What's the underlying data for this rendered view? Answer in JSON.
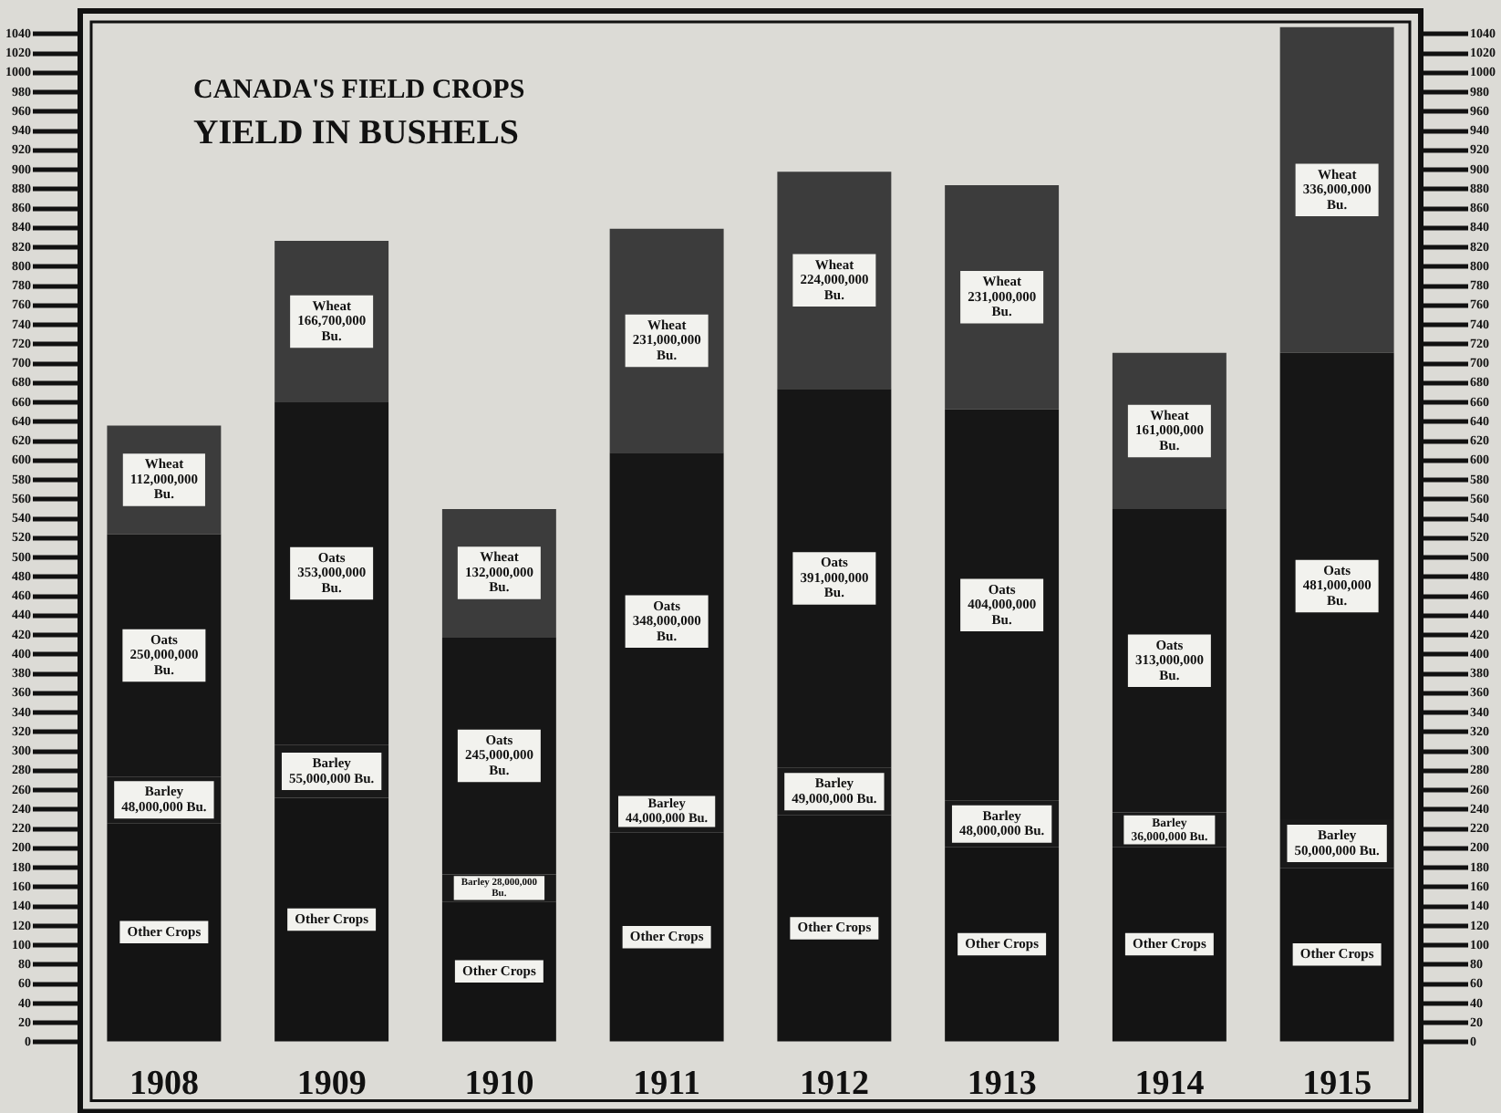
{
  "chart_data": {
    "type": "bar",
    "title": "CANADA'S FIELD CROPS",
    "subtitle": "YIELD IN BUSHELS",
    "stacked": true,
    "categories": [
      "1908",
      "1909",
      "1910",
      "1911",
      "1912",
      "1913",
      "1914",
      "1915"
    ],
    "series": [
      {
        "color": "#141414",
        "values": [
          226,
          252,
          145,
          216,
          234,
          201,
          201,
          180
        ],
        "value_labels": [
          "Other Crops",
          "Other Crops",
          "Other Crops",
          "Other Crops",
          "Other Crops",
          "Other Crops",
          "Other Crops",
          "Other Crops"
        ]
      },
      {
        "color": "#191919",
        "values": [
          48,
          55,
          28,
          44,
          49,
          48,
          36,
          50
        ],
        "value_labels": [
          "Barley 48,000,000 Bu.",
          "Barley 55,000,000 Bu.",
          "Barley 28,000,000 Bu.",
          "Barley 44,000,000 Bu.",
          "Barley 49,000,000 Bu.",
          "Barley 48,000,000 Bu.",
          "Barley 36,000,000 Bu.",
          "Barley 50,000,000 Bu."
        ]
      },
      {
        "color": "#161616",
        "values": [
          250,
          353,
          245,
          348,
          391,
          404,
          313,
          481
        ],
        "value_labels": [
          "Oats 250,000,000 Bu.",
          "Oats 353,000,000 Bu.",
          "Oats 245,000,000 Bu.",
          "Oats 348,000,000 Bu.",
          "Oats 391,000,000 Bu.",
          "Oats 404,000,000 Bu.",
          "Oats 313,000,000 Bu.",
          "Oats 481,000,000 Bu."
        ]
      },
      {
        "color": "#3c3c3c",
        "values": [
          112,
          166.7,
          132,
          231,
          224,
          231,
          161,
          336
        ],
        "value_labels": [
          "Wheat 112,000,000 Bu.",
          "Wheat 166,700,000 Bu.",
          "Wheat 132,000,000 Bu.",
          "Wheat 231,000,000 Bu.",
          "Wheat 224,000,000 Bu.",
          "Wheat 231,000,000 Bu.",
          "Wheat 161,000,000 Bu.",
          "Wheat 336,000,000 Bu."
        ]
      }
    ],
    "ylim": [
      0,
      1060
    ],
    "yticks": [
      0,
      20,
      40,
      60,
      80,
      100,
      120,
      140,
      160,
      180,
      200,
      220,
      240,
      260,
      280,
      300,
      320,
      340,
      360,
      380,
      400,
      420,
      440,
      460,
      480,
      500,
      520,
      540,
      560,
      580,
      600,
      620,
      640,
      660,
      680,
      700,
      720,
      740,
      760,
      780,
      800,
      820,
      840,
      860,
      880,
      900,
      920,
      940,
      960,
      980,
      1000,
      1020,
      1040
    ],
    "y2lim": [
      0,
      1060
    ],
    "y2ticks": [
      0,
      20,
      40,
      60,
      80,
      100,
      120,
      140,
      160,
      180,
      200,
      220,
      240,
      260,
      280,
      300,
      320,
      340,
      360,
      380,
      400,
      420,
      440,
      460,
      480,
      500,
      520,
      540,
      560,
      580,
      600,
      620,
      640,
      660,
      680,
      700,
      720,
      740,
      760,
      780,
      800,
      820,
      840,
      860,
      880,
      900,
      920,
      940,
      960,
      980,
      1000,
      1020,
      1040
    ]
  }
}
